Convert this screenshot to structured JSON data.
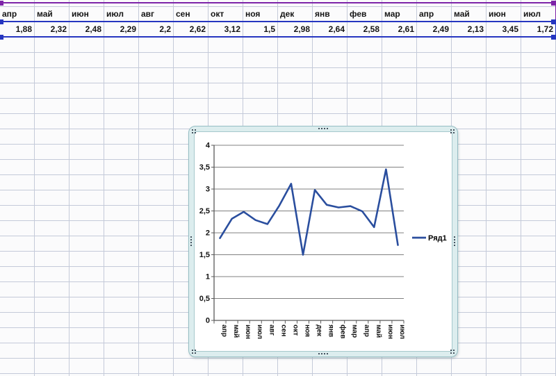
{
  "spreadsheet": {
    "category_row": [
      "апр",
      "май",
      "июн",
      "июл",
      "авг",
      "сен",
      "окт",
      "ноя",
      "дек",
      "янв",
      "фев",
      "мар",
      "апр",
      "май",
      "июн",
      "июл"
    ],
    "value_row": [
      "1,88",
      "2,32",
      "2,48",
      "2,29",
      "2,2",
      "2,62",
      "3,12",
      "1,5",
      "2,98",
      "2,64",
      "2,58",
      "2,61",
      "2,49",
      "2,13",
      "3,45",
      "1,72"
    ],
    "selection": {
      "category_range_color": "#7d24a8",
      "value_range_color": "#2636c0"
    }
  },
  "chart": {
    "legend_label": "Ряд1",
    "line_color": "#2a4e9e",
    "gridline_color": "#808080",
    "axis_color": "#595959",
    "frame_color": "#dcedee"
  },
  "chart_data": {
    "type": "line",
    "title": "",
    "xlabel": "",
    "ylabel": "",
    "categories": [
      "апр",
      "май",
      "июн",
      "июл",
      "авг",
      "сен",
      "окт",
      "ноя",
      "дек",
      "янв",
      "фев",
      "мар",
      "апр",
      "май",
      "июн",
      "июл"
    ],
    "series": [
      {
        "name": "Ряд1",
        "values": [
          1.88,
          2.32,
          2.48,
          2.29,
          2.2,
          2.62,
          3.12,
          1.5,
          2.98,
          2.64,
          2.58,
          2.61,
          2.49,
          2.13,
          3.45,
          1.72
        ]
      }
    ],
    "ylim": [
      0,
      4
    ],
    "ytick_step": 0.5,
    "ytick_labels": [
      "0",
      "0,5",
      "1",
      "1,5",
      "2",
      "2,5",
      "3",
      "3,5",
      "4"
    ],
    "grid": true,
    "legend_position": "right",
    "x_label_rotation_deg": 90
  }
}
